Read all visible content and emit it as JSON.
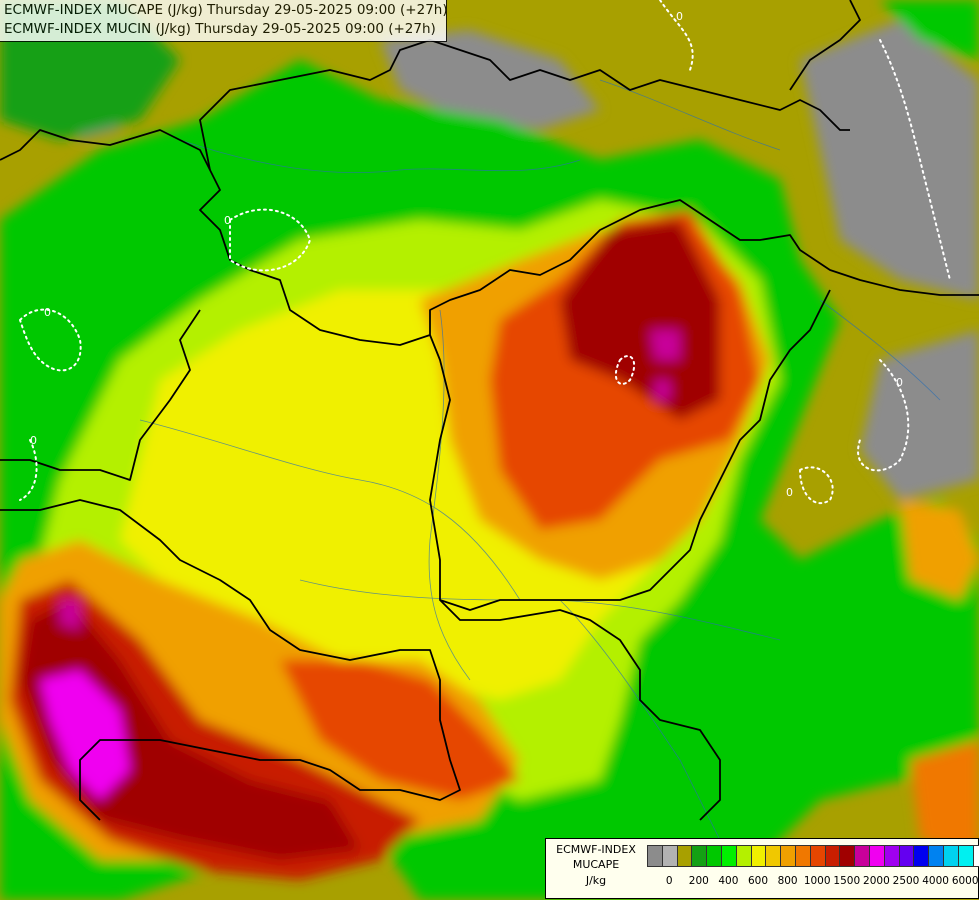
{
  "header": {
    "line1": "ECMWF-INDEX MUCAPE (J/kg) Thursday 29-05-2025 09:00 (+27h)",
    "line2": "ECMWF-INDEX MUCIN (J/kg) Thursday 29-05-2025 09:00 (+27h)"
  },
  "legend": {
    "title1": "ECMWF-INDEX",
    "title2": "MUCAPE",
    "unit": "J/kg",
    "ticks": [
      "0",
      "200",
      "400",
      "600",
      "800",
      "1000",
      "1500",
      "2000",
      "2500",
      "4000",
      "6000"
    ],
    "colors": [
      "#8c8c8c",
      "#b2b2b2",
      "#a8a000",
      "#14a014",
      "#00c800",
      "#00f000",
      "#b4f000",
      "#f0f000",
      "#f0c800",
      "#f0a000",
      "#f07800",
      "#e64600",
      "#c81e00",
      "#a00000",
      "#c8009a",
      "#f000f0",
      "#a000f0",
      "#6400f0",
      "#0000f0",
      "#0082f0",
      "#00d2f0",
      "#00f0f0",
      "#ffffff"
    ]
  },
  "map": {
    "contour_label": "0"
  }
}
